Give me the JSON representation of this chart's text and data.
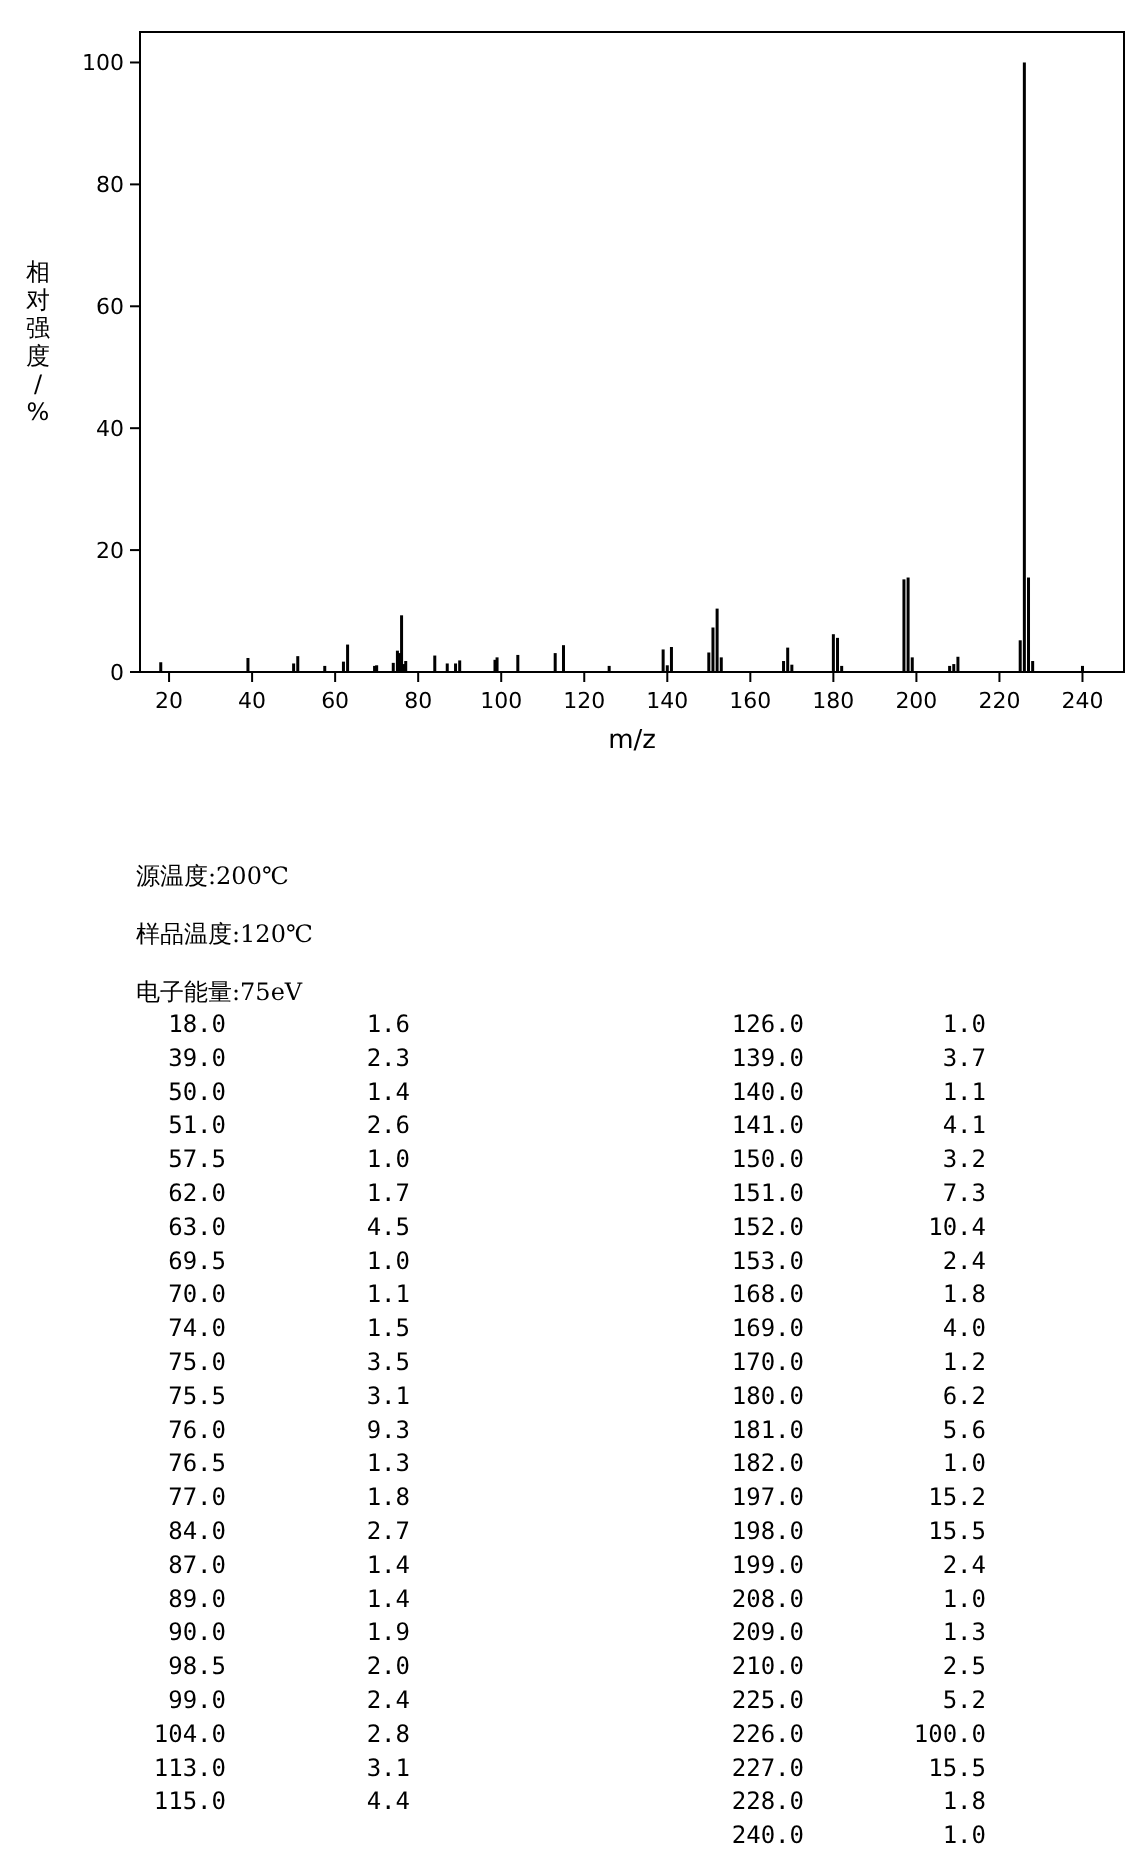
{
  "chart_data": {
    "type": "bar",
    "xlabel": "m/z",
    "ylabel": "相对强度/%",
    "color": "#000000",
    "x": [
      18.0,
      39.0,
      50.0,
      51.0,
      57.5,
      62.0,
      63.0,
      69.5,
      70.0,
      74.0,
      75.0,
      75.5,
      76.0,
      76.5,
      77.0,
      84.0,
      87.0,
      89.0,
      90.0,
      98.5,
      99.0,
      104.0,
      113.0,
      115.0,
      126.0,
      139.0,
      140.0,
      141.0,
      150.0,
      151.0,
      152.0,
      153.0,
      168.0,
      169.0,
      170.0,
      180.0,
      181.0,
      182.0,
      197.0,
      198.0,
      199.0,
      208.0,
      209.0,
      210.0,
      225.0,
      226.0,
      227.0,
      228.0,
      240.0
    ],
    "values": [
      1.6,
      2.3,
      1.4,
      2.6,
      1.0,
      1.7,
      4.5,
      1.0,
      1.1,
      1.5,
      3.5,
      3.1,
      9.3,
      1.3,
      1.8,
      2.7,
      1.4,
      1.4,
      1.9,
      2.0,
      2.4,
      2.8,
      3.1,
      4.4,
      1.0,
      3.7,
      1.1,
      4.1,
      3.2,
      7.3,
      10.4,
      2.4,
      1.8,
      4.0,
      1.2,
      6.2,
      5.6,
      1.0,
      15.2,
      15.5,
      2.4,
      1.0,
      1.3,
      2.5,
      5.2,
      100.0,
      15.5,
      1.8,
      1.0
    ],
    "xlim": [
      13,
      250
    ],
    "ylim": [
      0,
      105
    ],
    "xticks": [
      20,
      40,
      60,
      80,
      100,
      120,
      140,
      160,
      180,
      200,
      220,
      240
    ],
    "yticks": [
      0,
      20,
      40,
      60,
      80,
      100
    ],
    "annotations": [
      "源温度:200℃",
      "样品温度:120℃",
      "电子能量:75eV",
      "18.0",
      "1.6",
      "39.0",
      "2.3",
      "50.0",
      "1.4",
      "51.0",
      "2.6",
      "57.5",
      "1.0",
      "62.0",
      "1.7",
      "63.0",
      "4.5",
      "69.5",
      "1.0",
      "70.0",
      "1.1",
      "74.0",
      "1.5",
      "75.0",
      "3.5",
      "75.5",
      "3.1",
      "76.0",
      "9.3",
      "76.5",
      "1.3",
      "77.0",
      "1.8",
      "84.0",
      "2.7",
      "87.0",
      "1.4",
      "89.0",
      "1.4",
      "90.0",
      "1.9",
      "98.5",
      "2.0",
      "99.0",
      "2.4",
      "104.0",
      "2.8",
      "113.0",
      "3.1",
      "115.0",
      "4.4",
      "126.0",
      "1.0",
      "139.0",
      "3.7",
      "140.0",
      "1.1",
      "141.0",
      "4.1",
      "150.0",
      "3.2",
      "151.0",
      "7.3",
      "152.0",
      "10.4",
      "153.0",
      "2.4",
      "168.0",
      "1.8",
      "169.0",
      "4.0",
      "170.0",
      "1.2",
      "180.0",
      "6.2",
      "181.0",
      "5.6",
      "182.0",
      "1.0",
      "197.0",
      "15.2",
      "198.0",
      "15.5",
      "199.0",
      "2.4",
      "208.0",
      "1.0",
      "209.0",
      "1.3",
      "210.0",
      "2.5",
      "225.0",
      "5.2",
      "226.0",
      "100.0",
      "227.0",
      "15.5",
      "228.0",
      "1.8",
      "240.0",
      "1.0"
    ]
  }
}
